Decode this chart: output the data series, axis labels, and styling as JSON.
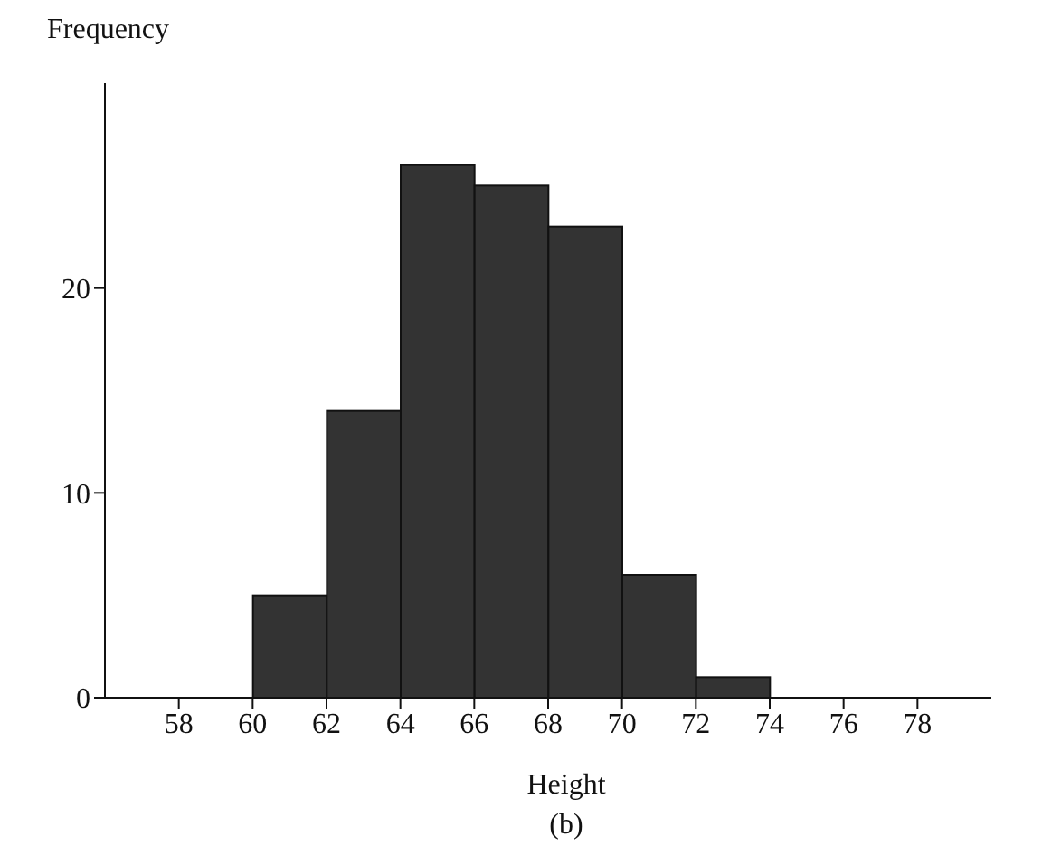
{
  "chart_data": {
    "type": "histogram",
    "ylabel": "Frequency",
    "xlabel": "Height",
    "annotations": [
      "(b)"
    ],
    "bins": [
      60,
      62,
      64,
      66,
      68,
      70,
      72,
      74
    ],
    "values": [
      5,
      14,
      26,
      25,
      23,
      6,
      1
    ],
    "color": "#333333",
    "xlim": [
      56,
      80
    ],
    "xticks": [
      58,
      60,
      62,
      64,
      66,
      68,
      70,
      72,
      74,
      76,
      78
    ],
    "ylim": [
      0,
      30
    ],
    "yticks": [
      0,
      10,
      20
    ],
    "grid": false,
    "legend": false
  }
}
